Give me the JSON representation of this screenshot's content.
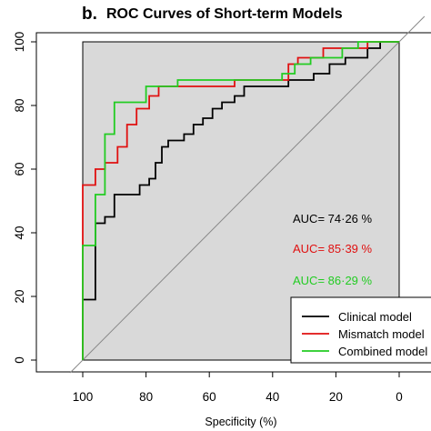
{
  "chart_data": {
    "type": "line",
    "panel_letter": "b.",
    "title": "ROC Curves of Short-term Models",
    "xlabel": "Specificity (%)",
    "ylabel": "",
    "xlim": [
      100,
      0
    ],
    "ylim": [
      0,
      100
    ],
    "x_reversed": true,
    "x_ticks": [
      100,
      80,
      60,
      40,
      20,
      0
    ],
    "y_ticks": [
      0,
      20,
      40,
      60,
      80,
      100
    ],
    "reference_line": "diagonal",
    "background_color": "#d9d9d9",
    "series": [
      {
        "name": "Clinical model",
        "color": "#000000",
        "auc_label": "AUC= 74·26 %",
        "points": [
          [
            100,
            0
          ],
          [
            100,
            19
          ],
          [
            96,
            19
          ],
          [
            96,
            43
          ],
          [
            93,
            43
          ],
          [
            93,
            45
          ],
          [
            90,
            45
          ],
          [
            90,
            52
          ],
          [
            85,
            52
          ],
          [
            82,
            52
          ],
          [
            82,
            55
          ],
          [
            79,
            55
          ],
          [
            79,
            57
          ],
          [
            77,
            57
          ],
          [
            77,
            62
          ],
          [
            75,
            62
          ],
          [
            75,
            67
          ],
          [
            73,
            67
          ],
          [
            73,
            69
          ],
          [
            68,
            69
          ],
          [
            68,
            71
          ],
          [
            65,
            71
          ],
          [
            65,
            74
          ],
          [
            62,
            74
          ],
          [
            62,
            76
          ],
          [
            59,
            76
          ],
          [
            59,
            79
          ],
          [
            56,
            79
          ],
          [
            56,
            81
          ],
          [
            52,
            81
          ],
          [
            52,
            83
          ],
          [
            49,
            83
          ],
          [
            49,
            86
          ],
          [
            40,
            86
          ],
          [
            35,
            86
          ],
          [
            35,
            88
          ],
          [
            27,
            88
          ],
          [
            27,
            90
          ],
          [
            22,
            90
          ],
          [
            22,
            93
          ],
          [
            17,
            93
          ],
          [
            17,
            95
          ],
          [
            10,
            95
          ],
          [
            10,
            98
          ],
          [
            6,
            98
          ],
          [
            6,
            100
          ],
          [
            0,
            100
          ]
        ]
      },
      {
        "name": "Mismatch model",
        "color": "#e01010",
        "auc_label": "AUC= 85·39 %",
        "points": [
          [
            100,
            0
          ],
          [
            100,
            55
          ],
          [
            96,
            55
          ],
          [
            96,
            60
          ],
          [
            93,
            60
          ],
          [
            93,
            62
          ],
          [
            89,
            62
          ],
          [
            89,
            67
          ],
          [
            86,
            67
          ],
          [
            86,
            74
          ],
          [
            83,
            74
          ],
          [
            83,
            79
          ],
          [
            79,
            79
          ],
          [
            79,
            83
          ],
          [
            76,
            83
          ],
          [
            76,
            86
          ],
          [
            72,
            86
          ],
          [
            72,
            86
          ],
          [
            60,
            86
          ],
          [
            52,
            86
          ],
          [
            52,
            88
          ],
          [
            35,
            88
          ],
          [
            35,
            93
          ],
          [
            32,
            93
          ],
          [
            32,
            95
          ],
          [
            24,
            95
          ],
          [
            24,
            98
          ],
          [
            10,
            98
          ],
          [
            10,
            100
          ],
          [
            0,
            100
          ]
        ]
      },
      {
        "name": "Combined model",
        "color": "#22cc22",
        "auc_label": "AUC= 86·29 %",
        "points": [
          [
            100,
            0
          ],
          [
            100,
            36
          ],
          [
            96,
            36
          ],
          [
            96,
            52
          ],
          [
            93,
            52
          ],
          [
            93,
            71
          ],
          [
            90,
            71
          ],
          [
            90,
            81
          ],
          [
            80,
            81
          ],
          [
            80,
            86
          ],
          [
            76,
            86
          ],
          [
            76,
            86
          ],
          [
            70,
            86
          ],
          [
            70,
            88
          ],
          [
            58,
            88
          ],
          [
            40,
            88
          ],
          [
            37,
            88
          ],
          [
            37,
            90
          ],
          [
            33,
            90
          ],
          [
            33,
            93
          ],
          [
            28,
            93
          ],
          [
            28,
            95
          ],
          [
            18,
            95
          ],
          [
            18,
            98
          ],
          [
            13,
            98
          ],
          [
            13,
            100
          ],
          [
            0,
            100
          ]
        ]
      }
    ],
    "legend": {
      "placement": "bottom-right",
      "entries": [
        "Clinical model",
        "Mismatch model",
        "Combined model"
      ]
    }
  }
}
